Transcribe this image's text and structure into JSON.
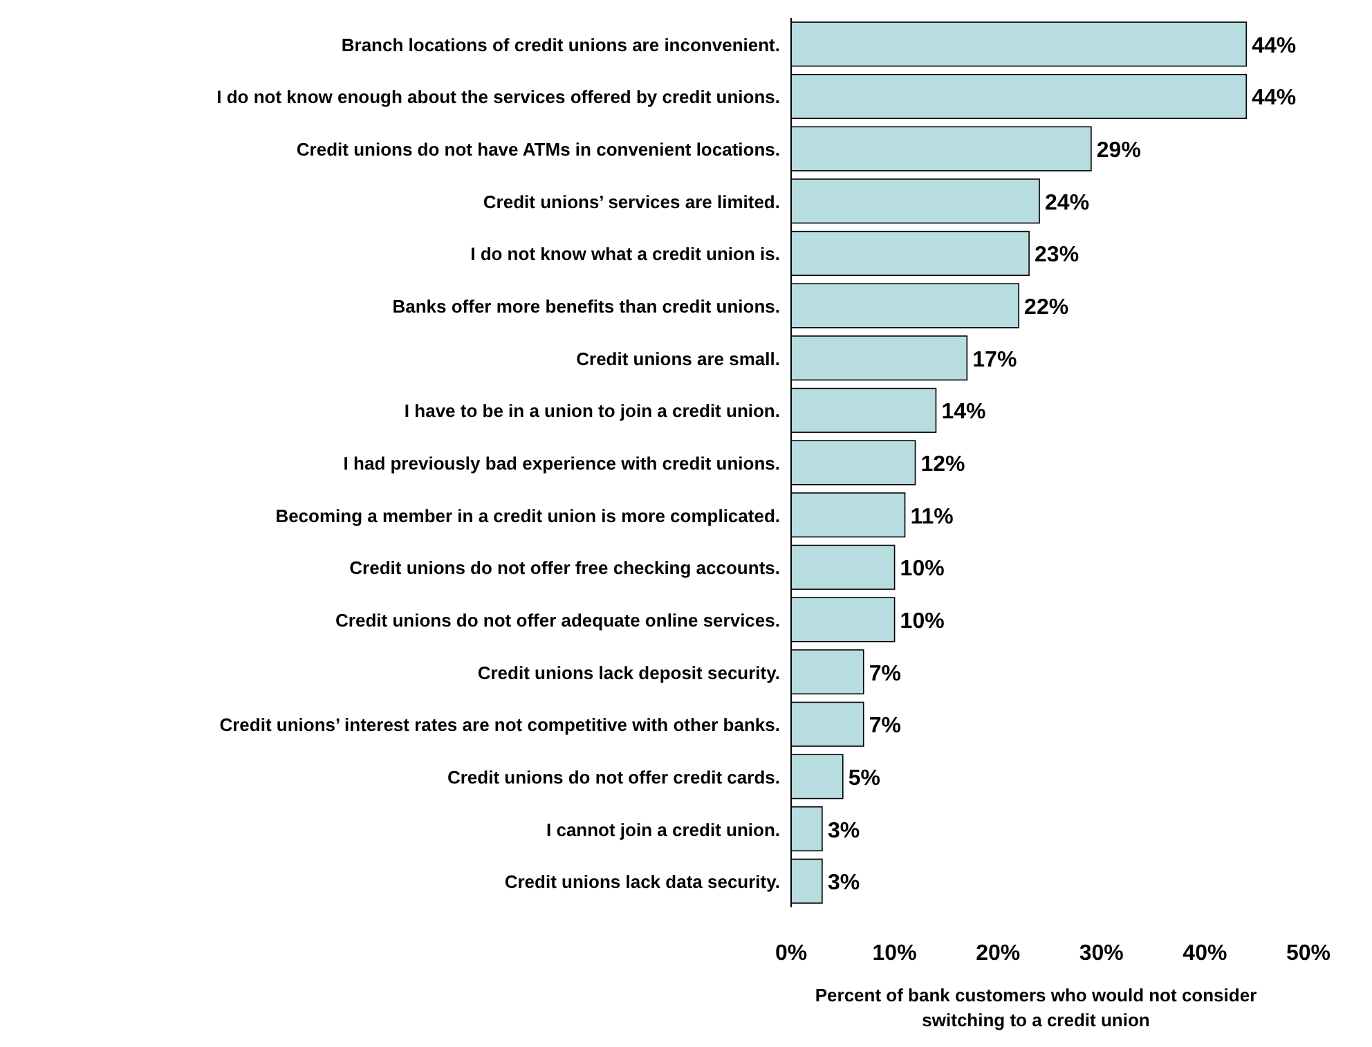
{
  "chart_data": {
    "type": "bar",
    "orientation": "horizontal",
    "categories": [
      "Branch locations of credit unions are inconvenient.",
      "I do not know enough about the services offered by credit unions.",
      "Credit unions do not have ATMs in convenient locations.",
      "Credit unions’ services are limited.",
      "I do not know what a credit union is.",
      "Banks offer more benefits than credit unions.",
      "Credit unions are small.",
      "I have to be in a union to join a credit union.",
      "I had previously bad experience with credit unions.",
      "Becoming a member in a credit union is more complicated.",
      "Credit unions do not offer free checking accounts.",
      "Credit unions do not offer adequate online services.",
      "Credit unions lack deposit security.",
      "Credit unions’ interest rates are not competitive with other banks.",
      "Credit unions do not offer credit cards.",
      "I cannot join a credit union.",
      "Credit unions lack data security."
    ],
    "values": [
      44,
      44,
      29,
      24,
      23,
      22,
      17,
      14,
      12,
      11,
      10,
      10,
      7,
      7,
      5,
      3,
      3
    ],
    "value_labels": [
      "44%",
      "44%",
      "29%",
      "24%",
      "23%",
      "22%",
      "17%",
      "14%",
      "12%",
      "11%",
      "10%",
      "10%",
      "7%",
      "7%",
      "5%",
      "3%",
      "3%"
    ],
    "color": "#b7dde0",
    "xlabel": "Percent of bank customers who would not consider switching to a credit union",
    "xlim": [
      0,
      50
    ],
    "xticks": [
      {
        "value": 0,
        "label": "0%"
      },
      {
        "value": 10,
        "label": "10%"
      },
      {
        "value": 20,
        "label": "20%"
      },
      {
        "value": 30,
        "label": "30%"
      },
      {
        "value": 40,
        "label": "40%"
      },
      {
        "value": 50,
        "label": "50%"
      }
    ],
    "grid": false
  }
}
